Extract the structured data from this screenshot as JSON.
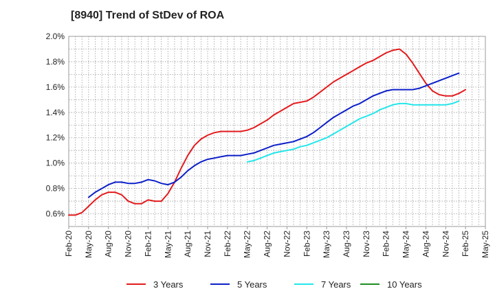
{
  "chart_data": {
    "type": "line",
    "title": "[8940]  Trend of StDev of ROA",
    "xlabel": "",
    "ylabel": "",
    "x_tick_labels": [
      "Feb-20",
      "May-20",
      "Aug-20",
      "Nov-20",
      "Feb-21",
      "May-21",
      "Aug-21",
      "Nov-21",
      "Feb-22",
      "May-22",
      "Aug-22",
      "Nov-22",
      "Feb-23",
      "May-23",
      "Aug-23",
      "Nov-23",
      "Feb-24",
      "May-24",
      "Aug-24",
      "Nov-24",
      "Feb-25",
      "May-25"
    ],
    "y_tick_labels": [
      "0.6%",
      "0.8%",
      "1.0%",
      "1.2%",
      "1.4%",
      "1.6%",
      "1.8%",
      "2.0%"
    ],
    "ylim": [
      0.5,
      2.0
    ],
    "grid": true,
    "legend_position": "bottom",
    "series": [
      {
        "name": "3 Years",
        "color": "#e31a1c",
        "start_index": 0,
        "values": [
          0.59,
          0.59,
          0.61,
          0.66,
          0.71,
          0.75,
          0.77,
          0.77,
          0.75,
          0.7,
          0.68,
          0.68,
          0.71,
          0.7,
          0.7,
          0.76,
          0.85,
          0.96,
          1.06,
          1.14,
          1.19,
          1.22,
          1.24,
          1.25,
          1.25,
          1.25,
          1.25,
          1.26,
          1.28,
          1.31,
          1.34,
          1.38,
          1.41,
          1.44,
          1.47,
          1.48,
          1.49,
          1.52,
          1.56,
          1.6,
          1.64,
          1.67,
          1.7,
          1.73,
          1.76,
          1.79,
          1.81,
          1.84,
          1.87,
          1.89,
          1.9,
          1.86,
          1.79,
          1.71,
          1.63,
          1.57,
          1.54,
          1.53,
          1.53,
          1.55,
          1.58
        ]
      },
      {
        "name": "5 Years",
        "color": "#0b1ec8",
        "start_index": 3,
        "values": [
          0.73,
          0.77,
          0.8,
          0.83,
          0.85,
          0.85,
          0.84,
          0.84,
          0.85,
          0.87,
          0.86,
          0.84,
          0.83,
          0.85,
          0.89,
          0.94,
          0.98,
          1.01,
          1.03,
          1.04,
          1.05,
          1.06,
          1.06,
          1.06,
          1.07,
          1.08,
          1.1,
          1.12,
          1.14,
          1.15,
          1.16,
          1.17,
          1.19,
          1.21,
          1.24,
          1.28,
          1.32,
          1.36,
          1.39,
          1.42,
          1.45,
          1.47,
          1.5,
          1.53,
          1.55,
          1.57,
          1.58,
          1.58,
          1.58,
          1.58,
          1.59,
          1.61,
          1.63,
          1.65,
          1.67,
          1.69,
          1.71
        ]
      },
      {
        "name": "7 Years",
        "color": "#22e6ea",
        "start_index": 27,
        "values": [
          1.01,
          1.02,
          1.04,
          1.06,
          1.08,
          1.09,
          1.1,
          1.11,
          1.13,
          1.14,
          1.16,
          1.18,
          1.2,
          1.23,
          1.26,
          1.29,
          1.32,
          1.35,
          1.37,
          1.39,
          1.42,
          1.44,
          1.46,
          1.47,
          1.47,
          1.46,
          1.46,
          1.46,
          1.46,
          1.46,
          1.46,
          1.47,
          1.49
        ]
      },
      {
        "name": "10 Years",
        "color": "#1e8c1e",
        "start_index": 0,
        "values": []
      }
    ]
  }
}
